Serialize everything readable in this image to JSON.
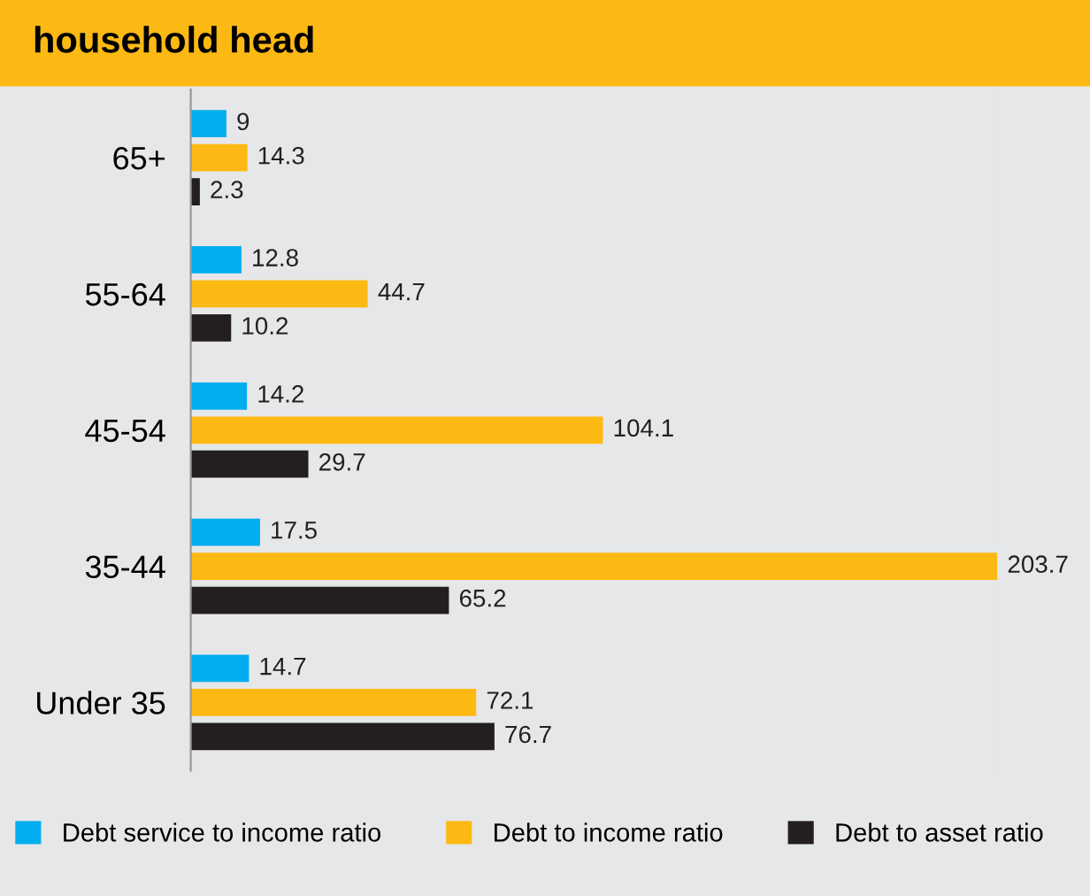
{
  "chart_data": {
    "type": "bar",
    "orientation": "horizontal",
    "title": "household head",
    "categories": [
      "65+",
      "55-64",
      "45-54",
      "35-44",
      "Under 35"
    ],
    "series": [
      {
        "name": "Debt service to income ratio",
        "color": "#00aeef",
        "values": [
          9,
          12.8,
          14.2,
          17.5,
          14.7
        ]
      },
      {
        "name": "Debt to income ratio",
        "color": "#fdb913",
        "values": [
          14.3,
          44.7,
          104.1,
          203.7,
          72.1
        ]
      },
      {
        "name": "Debt to asset ratio",
        "color": "#231f20",
        "values": [
          2.3,
          10.2,
          29.7,
          65.2,
          76.7
        ]
      }
    ],
    "data_labels": true,
    "legend": "bottom",
    "grid": false
  }
}
